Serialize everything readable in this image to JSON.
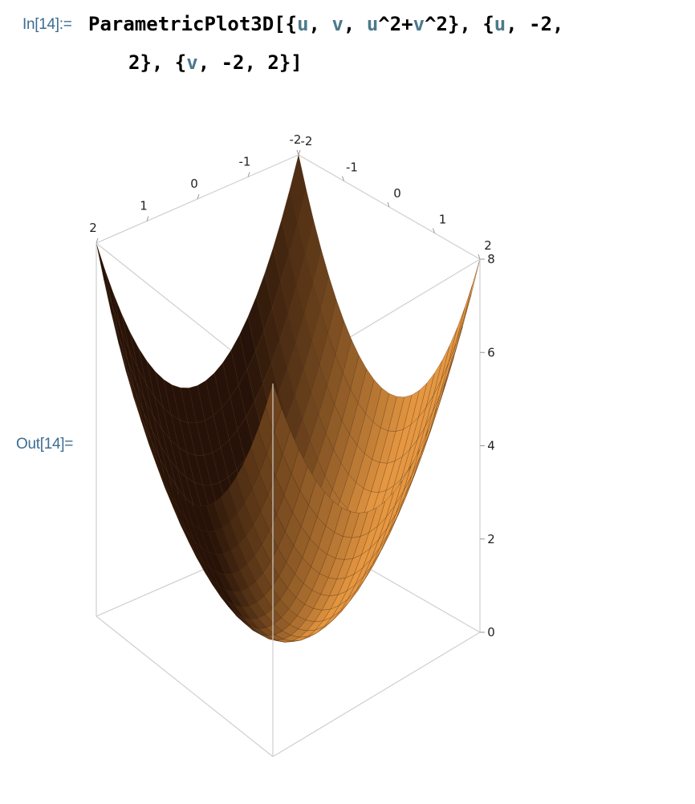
{
  "input_cell": {
    "label": "In[14]:=",
    "function": "ParametricPlot3D",
    "tokens": [
      {
        "t": "[{",
        "c": "kw"
      },
      {
        "t": "u",
        "c": "var"
      },
      {
        "t": ", ",
        "c": "kw"
      },
      {
        "t": "v",
        "c": "var"
      },
      {
        "t": ", ",
        "c": "kw"
      },
      {
        "t": "u",
        "c": "var"
      },
      {
        "t": "^2+",
        "c": "kw"
      },
      {
        "t": "v",
        "c": "var"
      },
      {
        "t": "^2}, {",
        "c": "kw"
      },
      {
        "t": "u",
        "c": "var"
      },
      {
        "t": ", -2,",
        "c": "kw"
      }
    ],
    "tokens_line2": [
      {
        "t": "2}, {",
        "c": "kw"
      },
      {
        "t": "v",
        "c": "var"
      },
      {
        "t": ", -2, 2}]",
        "c": "kw"
      }
    ]
  },
  "output_cell": {
    "label": "Out[14]="
  },
  "chart_data": {
    "type": "surface3d",
    "expression": "{u, v, u^2 + v^2}",
    "u_range": [
      -2,
      2
    ],
    "v_range": [
      -2,
      2
    ],
    "z_range": [
      0,
      8
    ],
    "x_ticks": [
      "2",
      "1",
      "0",
      "-1",
      "-2"
    ],
    "y_ticks": [
      "-2",
      "-1",
      "0",
      "1",
      "2"
    ],
    "z_ticks": [
      "0",
      "2",
      "4",
      "6",
      "8"
    ],
    "surface_color": "#e59a48",
    "mesh_color": "#4a2a10",
    "box_color": "#cfcfcf"
  }
}
